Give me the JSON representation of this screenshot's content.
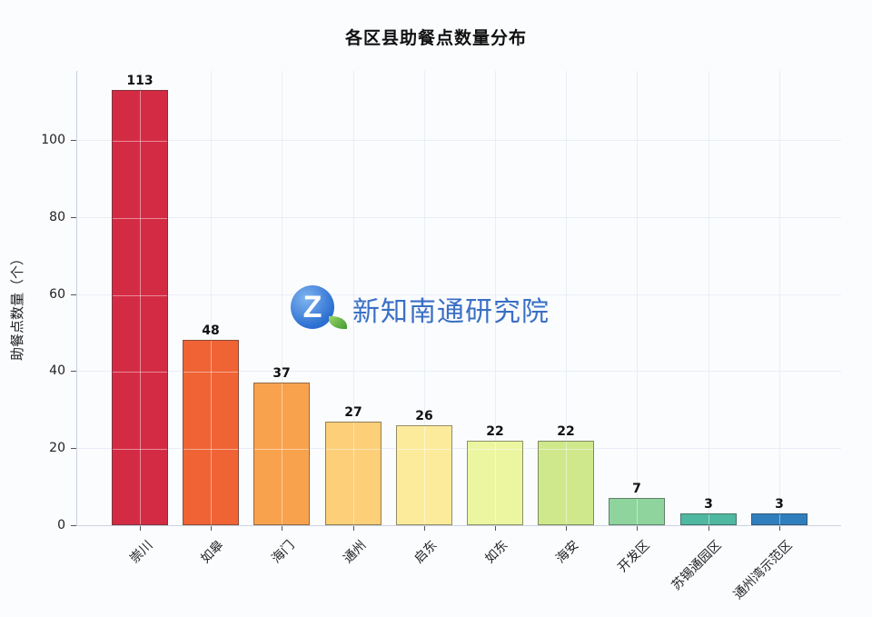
{
  "chart_data": {
    "type": "bar",
    "title": "各区县助餐点数量分布",
    "xlabel": "",
    "ylabel": "助餐点数量（个）",
    "ylim": [
      0,
      118
    ],
    "yticks": [
      0,
      20,
      40,
      60,
      80,
      100
    ],
    "grid": true,
    "legend": null,
    "categories": [
      "崇川",
      "如皋",
      "海门",
      "通州",
      "启东",
      "如东",
      "海安",
      "开发区",
      "苏锡通园区",
      "通州湾示范区"
    ],
    "values": [
      113,
      48,
      37,
      27,
      26,
      22,
      22,
      7,
      3,
      3
    ],
    "colors": [
      "#d42b44",
      "#ef6335",
      "#f9a24e",
      "#fdcf78",
      "#fdeb9c",
      "#ecf6a0",
      "#cfe88c",
      "#8fd49d",
      "#4fb8a1",
      "#2f7fbe"
    ],
    "value_labels": [
      "113",
      "48",
      "37",
      "27",
      "26",
      "22",
      "22",
      "7",
      "3",
      "3"
    ]
  },
  "ytick_labels": [
    "0",
    "20",
    "40",
    "60",
    "80",
    "100"
  ],
  "watermark": {
    "logo_letter": "Z",
    "text": "新知南通研究院"
  }
}
